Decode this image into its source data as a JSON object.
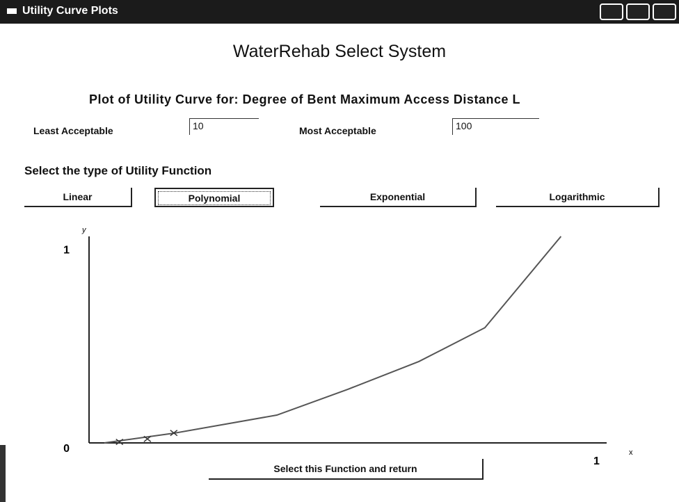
{
  "window": {
    "title": "Utility Curve Plots"
  },
  "header": {
    "title": "WaterRehab Select System",
    "subtitle": "Plot of Utility Curve for: Degree of Bent Maximum Access Distance L"
  },
  "form": {
    "least_label": "Least Acceptable",
    "least_value": "10",
    "most_label": "Most Acceptable",
    "most_value": "100",
    "prompt": "Select the type of Utility Function"
  },
  "buttons": [
    "Linear",
    "Polynomial",
    "Exponential",
    "Logarithmic"
  ],
  "chart_data": {
    "type": "line",
    "x_label": "x",
    "y_label": "y",
    "x": [
      0.03,
      0.17,
      0.37,
      0.51,
      0.65,
      0.78,
      0.93
    ],
    "values": [
      0,
      0.05,
      0.14,
      0.27,
      0.41,
      0.58,
      1.04
    ],
    "markers": {
      "x": [
        0.06,
        0.115,
        0.167
      ],
      "values": [
        0.005,
        0.02,
        0.05
      ]
    },
    "color": "#555555",
    "xlim": [
      0,
      1.02
    ],
    "ylim": [
      0,
      1.04
    ],
    "xticks": [
      1
    ],
    "yticks": [
      0,
      1
    ]
  },
  "footer_button": "Select this Function and return"
}
